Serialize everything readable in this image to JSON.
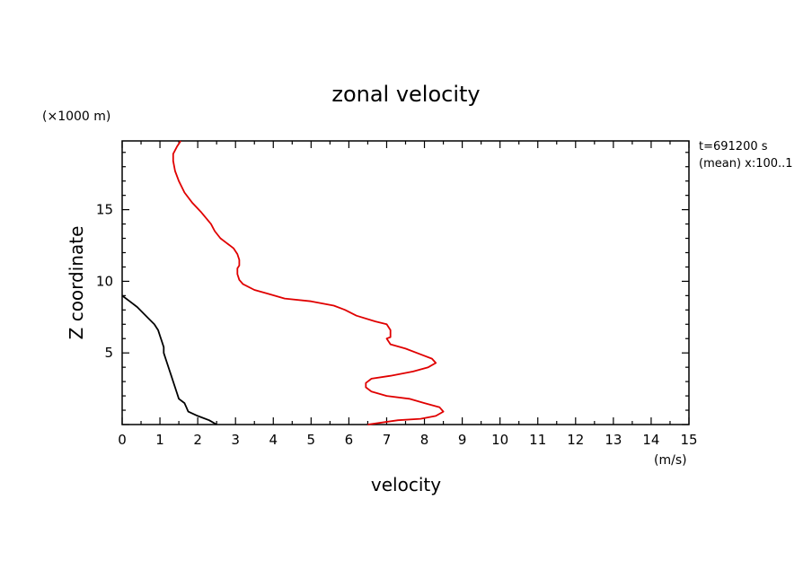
{
  "chart_data": {
    "type": "line",
    "title": "zonal velocity",
    "xlabel": "velocity",
    "x_unit": "(m/s)",
    "ylabel": "Z coordinate",
    "y_unit": "(×1000 m)",
    "xlim": [
      0,
      15
    ],
    "ylim": [
      0,
      19.8
    ],
    "x_ticks": [
      "0",
      "1",
      "2",
      "3",
      "4",
      "5",
      "6",
      "7",
      "8",
      "9",
      "10",
      "11",
      "12",
      "13",
      "14",
      "15"
    ],
    "y_ticks": [
      "5",
      "10",
      "15"
    ],
    "info_lines": [
      "t=691200 s",
      "(mean) x:100..1"
    ],
    "series": [
      {
        "color": "#e00000",
        "points": [
          [
            6.5,
            0.0
          ],
          [
            7.3,
            0.3
          ],
          [
            7.9,
            0.4
          ],
          [
            8.3,
            0.6
          ],
          [
            8.5,
            0.9
          ],
          [
            8.4,
            1.2
          ],
          [
            8.0,
            1.5
          ],
          [
            7.6,
            1.8
          ],
          [
            7.0,
            2.0
          ],
          [
            6.6,
            2.3
          ],
          [
            6.45,
            2.6
          ],
          [
            6.45,
            2.9
          ],
          [
            6.6,
            3.2
          ],
          [
            7.1,
            3.4
          ],
          [
            7.7,
            3.7
          ],
          [
            8.1,
            4.0
          ],
          [
            8.3,
            4.3
          ],
          [
            8.2,
            4.6
          ],
          [
            7.9,
            4.9
          ],
          [
            7.5,
            5.3
          ],
          [
            7.1,
            5.6
          ],
          [
            7.0,
            6.0
          ],
          [
            7.1,
            6.1
          ],
          [
            7.1,
            6.6
          ],
          [
            7.0,
            7.0
          ],
          [
            6.7,
            7.2
          ],
          [
            6.2,
            7.6
          ],
          [
            5.9,
            8.0
          ],
          [
            5.6,
            8.3
          ],
          [
            5.0,
            8.6
          ],
          [
            4.3,
            8.8
          ],
          [
            3.9,
            9.1
          ],
          [
            3.5,
            9.4
          ],
          [
            3.2,
            9.8
          ],
          [
            3.1,
            10.1
          ],
          [
            3.05,
            10.5
          ],
          [
            3.05,
            10.9
          ],
          [
            3.1,
            11.1
          ],
          [
            3.1,
            11.5
          ],
          [
            3.05,
            11.9
          ],
          [
            2.95,
            12.3
          ],
          [
            2.75,
            12.7
          ],
          [
            2.6,
            13.0
          ],
          [
            2.45,
            13.5
          ],
          [
            2.35,
            14.0
          ],
          [
            2.1,
            14.8
          ],
          [
            1.85,
            15.5
          ],
          [
            1.65,
            16.2
          ],
          [
            1.5,
            17.0
          ],
          [
            1.4,
            17.7
          ],
          [
            1.35,
            18.4
          ],
          [
            1.35,
            18.9
          ],
          [
            1.45,
            19.4
          ],
          [
            1.55,
            19.8
          ]
        ]
      },
      {
        "color": "#000000",
        "points": [
          [
            2.5,
            0.0
          ],
          [
            2.3,
            0.3
          ],
          [
            2.0,
            0.6
          ],
          [
            1.75,
            0.9
          ],
          [
            1.7,
            1.2
          ],
          [
            1.65,
            1.5
          ],
          [
            1.5,
            1.8
          ],
          [
            1.45,
            2.2
          ],
          [
            1.4,
            2.6
          ],
          [
            1.35,
            3.0
          ],
          [
            1.3,
            3.4
          ],
          [
            1.25,
            3.8
          ],
          [
            1.2,
            4.2
          ],
          [
            1.15,
            4.6
          ],
          [
            1.1,
            5.0
          ],
          [
            1.1,
            5.4
          ],
          [
            1.05,
            5.8
          ],
          [
            1.0,
            6.2
          ],
          [
            0.95,
            6.6
          ],
          [
            0.85,
            7.0
          ],
          [
            0.7,
            7.4
          ],
          [
            0.55,
            7.8
          ],
          [
            0.4,
            8.2
          ],
          [
            0.2,
            8.6
          ],
          [
            0.0,
            9.0
          ]
        ]
      }
    ]
  }
}
